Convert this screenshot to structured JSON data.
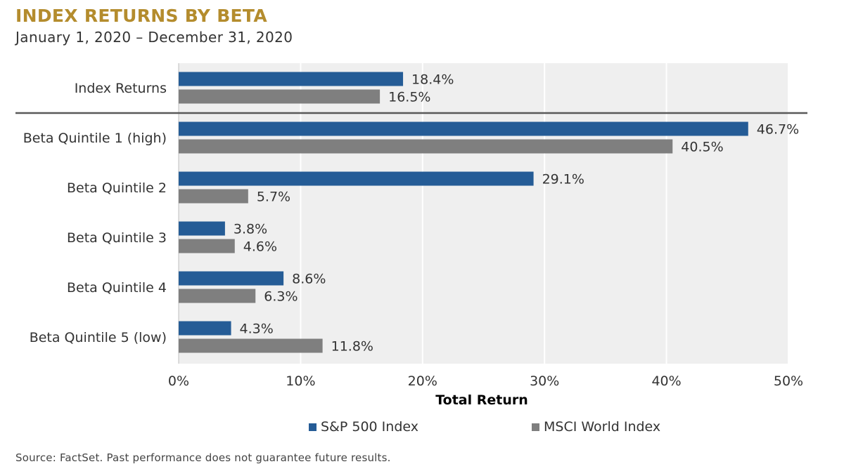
{
  "header": {
    "title": "INDEX RETURNS BY BETA",
    "subtitle": "January 1, 2020 – December 31, 2020"
  },
  "footer": {
    "source": "Source: FactSet. Past performance does not guarantee future results."
  },
  "colors": {
    "title": "#b48c2d",
    "sp500": "#255c96",
    "msci": "#7f7f7f",
    "plot_background": "#efefef",
    "separator": "#595959"
  },
  "chart_data": {
    "type": "bar",
    "orientation": "horizontal",
    "title": "INDEX RETURNS BY BETA",
    "subtitle": "January 1, 2020 – December 31, 2020",
    "categories": [
      "Index Returns",
      "Beta Quintile 1 (high)",
      "Beta Quintile 2",
      "Beta Quintile 3",
      "Beta Quintile 4",
      "Beta Quintile 5 (low)"
    ],
    "series": [
      {
        "name": "S&P 500 Index",
        "values": [
          18.4,
          46.7,
          29.1,
          3.8,
          8.6,
          4.3
        ],
        "labels": [
          "18.4%",
          "46.7%",
          "29.1%",
          "3.8%",
          "8.6%",
          "4.3%"
        ]
      },
      {
        "name": "MSCI World Index",
        "values": [
          16.5,
          40.5,
          5.7,
          4.6,
          6.3,
          11.8
        ],
        "labels": [
          "16.5%",
          "40.5%",
          "5.7%",
          "4.6%",
          "6.3%",
          "11.8%"
        ]
      }
    ],
    "xlabel": "Total Return",
    "ylabel": "",
    "xlim": [
      0,
      50
    ],
    "xticks": [
      0,
      10,
      20,
      30,
      40,
      50
    ],
    "xtick_labels": [
      "0%",
      "10%",
      "20%",
      "30%",
      "40%",
      "50%"
    ],
    "grid": true,
    "legend_position": "bottom",
    "separator_after_category": "Index Returns"
  }
}
